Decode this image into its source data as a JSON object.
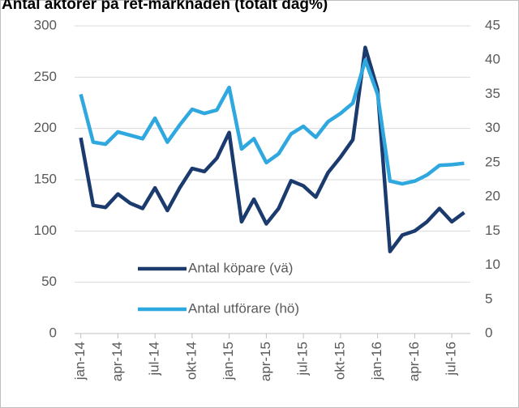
{
  "chart_data": {
    "type": "line",
    "title": "Antal aktörer på ret-marknaden (totalt dag%)",
    "categories": [
      "jan-14",
      null,
      null,
      "apr-14",
      null,
      null,
      "jul-14",
      null,
      null,
      "okt-14",
      null,
      null,
      "jan-15",
      null,
      null,
      "apr-15",
      null,
      null,
      "jul-15",
      null,
      null,
      "okt-15",
      null,
      null,
      "jan-16",
      null,
      null,
      "apr-16",
      null,
      null,
      "jul-16",
      null
    ],
    "series": [
      {
        "name": "Antal köpare (vä)",
        "color": "#1b3a6d",
        "axis": "y",
        "values": [
          191,
          125,
          123,
          136,
          127,
          122,
          142,
          120,
          142,
          161,
          158,
          171,
          196,
          109,
          131,
          107,
          122,
          149,
          144,
          133,
          157,
          172,
          189,
          279,
          238,
          80,
          96,
          100,
          109,
          122,
          109,
          118
        ]
      },
      {
        "name": "Antal utförare (hö)",
        "color": "#2fa8e0",
        "axis": "y2",
        "values": [
          35,
          28,
          27.7,
          29.5,
          29,
          28.5,
          31.5,
          28,
          30.5,
          32.8,
          32.2,
          32.7,
          36,
          27,
          28.5,
          25,
          26.3,
          29.2,
          30.3,
          28.7,
          31,
          32.2,
          33.7,
          40,
          35,
          22.3,
          21.9,
          22.3,
          23.2,
          24.6,
          24.7,
          24.9
        ]
      }
    ],
    "ylim": [
      0,
      300
    ],
    "yticks": [
      0,
      50,
      100,
      150,
      200,
      250,
      300
    ],
    "y2lim": [
      0,
      45
    ],
    "y2ticks": [
      0,
      5,
      10,
      15,
      20,
      25,
      30,
      35,
      40,
      45
    ],
    "grid": true
  }
}
